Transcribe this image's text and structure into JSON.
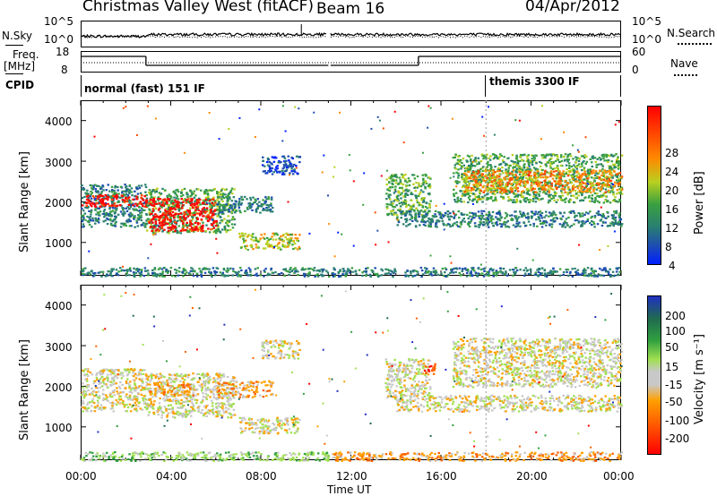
{
  "header": {
    "station": "Christmas Valley West (fitACF)",
    "beam": "Beam 16",
    "date": "04/Apr/2012"
  },
  "panels": {
    "nsky_label": "N.Sky",
    "nsky_ticks": [
      "10^5",
      "10^0"
    ],
    "nsearch_label": "N.Search",
    "nsearch_ticks": [
      "10^5",
      "10^0"
    ],
    "freq_label": "Freq.",
    "freq_unit": "[MHz]",
    "freq_ticks": [
      "18",
      "8"
    ],
    "nave_label": "Nave",
    "nave_ticks": [
      "60",
      "0"
    ],
    "cpid_label": "CPID",
    "cpid_modes": [
      {
        "name": "normal (fast) 151 IF",
        "start_h": 0,
        "end_h": 18
      },
      {
        "name": "themis 3300 IF",
        "start_h": 18,
        "end_h": 24
      }
    ]
  },
  "chart_data": [
    {
      "type": "heatmap",
      "name": "power",
      "ylabel": "Slant Range [km]",
      "y_ticks": [
        "4000",
        "3000",
        "2000",
        "1000"
      ],
      "ylim": [
        180,
        4500
      ],
      "xlim": [
        0,
        24
      ],
      "colorbar_label": "Power [dB]",
      "colorbar_ticks": [
        "28",
        "24",
        "20",
        "16",
        "12",
        "8",
        "4"
      ],
      "colors": [
        "#0020ff",
        "#1e4eb0",
        "#2a8070",
        "#3aa040",
        "#b8d020",
        "#ff8a00",
        "#ff4a00",
        "#ff0000"
      ],
      "regions": [
        {
          "t0": 0.0,
          "t1": 2.9,
          "r0": 1400,
          "r1": 2450,
          "level": 2
        },
        {
          "t0": 0.0,
          "t1": 2.9,
          "r0": 1900,
          "r1": 2200,
          "level": 7
        },
        {
          "t0": 2.9,
          "t1": 6.8,
          "r0": 1250,
          "r1": 2350,
          "level": 3
        },
        {
          "t0": 3.0,
          "t1": 6.0,
          "r0": 1300,
          "r1": 2100,
          "level": 7
        },
        {
          "t0": 6.0,
          "t1": 8.5,
          "r0": 1750,
          "r1": 2150,
          "level": 2
        },
        {
          "t0": 7.0,
          "t1": 9.7,
          "r0": 850,
          "r1": 1250,
          "level": 4
        },
        {
          "t0": 8.0,
          "t1": 9.7,
          "r0": 2700,
          "r1": 3150,
          "level": 1
        },
        {
          "t0": 13.5,
          "t1": 15.5,
          "r0": 1700,
          "r1": 2700,
          "level": 3
        },
        {
          "t0": 14.0,
          "t1": 24.0,
          "r0": 1400,
          "r1": 1800,
          "level": 2
        },
        {
          "t0": 16.5,
          "t1": 24.0,
          "r0": 2000,
          "r1": 3200,
          "level": 3
        },
        {
          "t0": 17.0,
          "t1": 24.0,
          "r0": 2250,
          "r1": 2800,
          "level": 5
        },
        {
          "t0": 0.0,
          "t1": 11.0,
          "r0": 180,
          "r1": 400,
          "level": 2
        },
        {
          "t0": 11.1,
          "t1": 24.0,
          "r0": 180,
          "r1": 400,
          "level": 2
        }
      ]
    },
    {
      "type": "heatmap",
      "name": "velocity",
      "ylabel": "Slant Range [km]",
      "y_ticks": [
        "4000",
        "3000",
        "2000",
        "1000"
      ],
      "ylim": [
        180,
        4500
      ],
      "xlim": [
        0,
        24
      ],
      "colorbar_label": "Velocity [m s⁻¹]",
      "colorbar_ticks": [
        "200",
        "100",
        "50",
        "15",
        "-15",
        "-50",
        "-100",
        "-200"
      ],
      "colors": [
        "#2030c0",
        "#206a50",
        "#30a040",
        "#a0e050",
        "#c8c8c8",
        "#ffa000",
        "#ff6000",
        "#ff0000"
      ],
      "regions": [
        {
          "t0": 0.0,
          "t1": 2.9,
          "r0": 1400,
          "r1": 2450,
          "level": 4
        },
        {
          "t0": 2.9,
          "t1": 6.8,
          "r0": 1250,
          "r1": 2350,
          "level": 4
        },
        {
          "t0": 3.0,
          "t1": 5.0,
          "r0": 1800,
          "r1": 2100,
          "level": 5
        },
        {
          "t0": 6.0,
          "t1": 8.5,
          "r0": 1750,
          "r1": 2150,
          "level": 5
        },
        {
          "t0": 7.0,
          "t1": 9.7,
          "r0": 850,
          "r1": 1250,
          "level": 4
        },
        {
          "t0": 8.0,
          "t1": 9.7,
          "r0": 2700,
          "r1": 3150,
          "level": 4
        },
        {
          "t0": 13.5,
          "t1": 15.5,
          "r0": 1700,
          "r1": 2700,
          "level": 4
        },
        {
          "t0": 14.0,
          "t1": 24.0,
          "r0": 1400,
          "r1": 1800,
          "level": 4
        },
        {
          "t0": 16.5,
          "t1": 24.0,
          "r0": 2000,
          "r1": 3200,
          "level": 4
        },
        {
          "t0": 15.2,
          "t1": 15.7,
          "r0": 2300,
          "r1": 2600,
          "level": 6
        },
        {
          "t0": 0.0,
          "t1": 11.0,
          "r0": 180,
          "r1": 400,
          "level": 3
        },
        {
          "t0": 11.1,
          "t1": 24.0,
          "r0": 180,
          "r1": 400,
          "level": 5
        }
      ]
    }
  ],
  "x_axis": {
    "label": "Time UT",
    "ticks": [
      "00:00",
      "04:00",
      "08:00",
      "12:00",
      "16:00",
      "20:00",
      "00:00"
    ]
  }
}
